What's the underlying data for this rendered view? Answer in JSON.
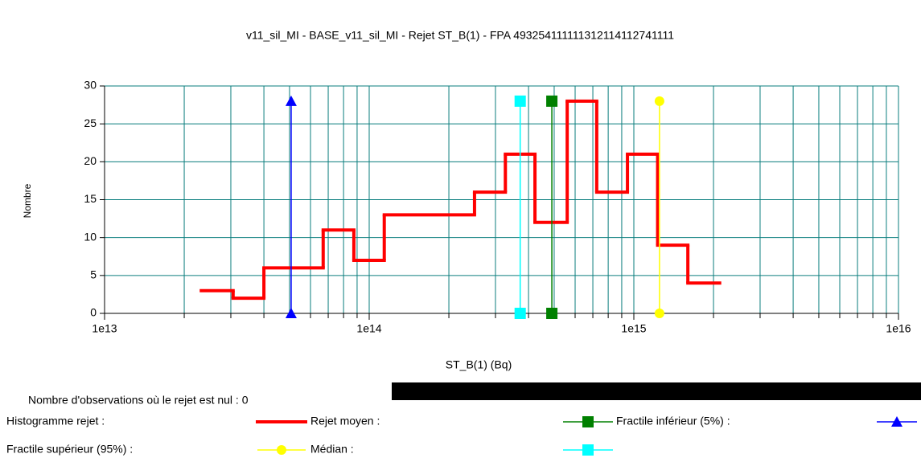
{
  "chart_data": {
    "type": "step-histogram",
    "title": "v11_sil_MI - BASE_v11_sil_MI - Rejet ST_B(1) - FPA 493254111111312114112741111",
    "xlabel": "ST_B(1) (Bq)",
    "ylabel": "Nombre",
    "note": "Nombre d'observations où le rejet est nul : 0",
    "xscale": "log",
    "xlim": [
      10000000000000.0,
      1e+16
    ],
    "ylim": [
      0,
      30
    ],
    "xticks": [
      {
        "value": 10000000000000.0,
        "label": "1e13"
      },
      {
        "value": 100000000000000.0,
        "label": "1e14"
      },
      {
        "value": 1000000000000000.0,
        "label": "1e15"
      },
      {
        "value": 1e+16,
        "label": "1e16"
      }
    ],
    "xminor": [
      20000000000000.0,
      30000000000000.0,
      40000000000000.0,
      50000000000000.0,
      60000000000000.0,
      70000000000000.0,
      80000000000000.0,
      90000000000000.0,
      200000000000000.0,
      300000000000000.0,
      400000000000000.0,
      500000000000000.0,
      600000000000000.0,
      700000000000000.0,
      800000000000000.0,
      900000000000000.0,
      2000000000000000.0,
      3000000000000000.0,
      4000000000000000.0,
      5000000000000000.0,
      6000000000000000.0,
      7000000000000000.0,
      8000000000000000.0,
      9000000000000000.0
    ],
    "yticks": [
      0,
      5,
      10,
      15,
      20,
      25,
      30
    ],
    "grid": true,
    "grid_color": "#0a7d7d",
    "histogram": {
      "name": "Histogramme rejet :",
      "color": "#ff0000",
      "bins": [
        23200000000000.0,
        30600000000000.0,
        40000000000000.0,
        67000000000000.0,
        87500000000000.0,
        114000000000000.0,
        250000000000000.0,
        327000000000000.0,
        423000000000000.0,
        560000000000000.0,
        724000000000000.0,
        946000000000000.0,
        1230000000000000.0,
        1600000000000000.0,
        2110000000000000.0
      ],
      "values": [
        3,
        2,
        6,
        11,
        7,
        13,
        16,
        21,
        12,
        28,
        16,
        21,
        9,
        4
      ]
    },
    "series": [
      {
        "name": "Rejet moyen :",
        "color": "#008000",
        "marker": "square",
        "x": 490000000000000.0,
        "values": [
          0,
          28
        ]
      },
      {
        "name": "Fractile inférieur (5%) :",
        "color": "#0000ff",
        "marker": "triangle",
        "x": 50700000000000.0,
        "values": [
          0,
          28
        ]
      },
      {
        "name": "Fractile supérieur (95%) :",
        "color": "#ffff00",
        "marker": "circle",
        "x": 1250000000000000.0,
        "values": [
          0,
          28
        ]
      },
      {
        "name": "Médian :",
        "color": "#00ffff",
        "marker": "square",
        "x": 372000000000000.0,
        "values": [
          0,
          28
        ]
      }
    ]
  }
}
